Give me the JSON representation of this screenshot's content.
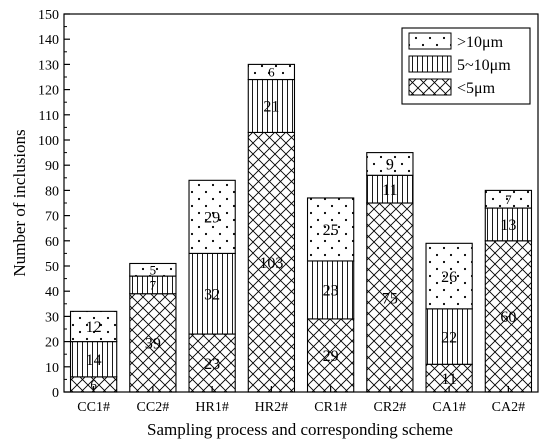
{
  "chart_data": {
    "type": "bar",
    "stacked": true,
    "xlabel": "Sampling process and corresponding scheme",
    "ylabel": "Number of inclusions",
    "ylim": [
      0,
      150
    ],
    "yticks": [
      0,
      10,
      20,
      30,
      40,
      50,
      60,
      70,
      80,
      90,
      100,
      110,
      120,
      130,
      140,
      150
    ],
    "categories": [
      "CC1#",
      "CC2#",
      "HR1#",
      "HR2#",
      "CR1#",
      "CR2#",
      "CA1#",
      "CA2#"
    ],
    "series": [
      {
        "name": "<5μm",
        "pattern": "crosshatch",
        "values": [
          6,
          39,
          23,
          103,
          29,
          75,
          11,
          60
        ]
      },
      {
        "name": "5~10μm",
        "pattern": "vertical-lines",
        "values": [
          14,
          7,
          32,
          21,
          23,
          11,
          22,
          13
        ]
      },
      {
        "name": ">10μm",
        "pattern": "dots",
        "values": [
          12,
          5,
          29,
          6,
          25,
          9,
          26,
          7
        ]
      }
    ],
    "legend": {
      "placement": "top-right",
      "order": [
        ">10μm",
        "5~10μm",
        "<5μm"
      ]
    },
    "grid": false
  }
}
